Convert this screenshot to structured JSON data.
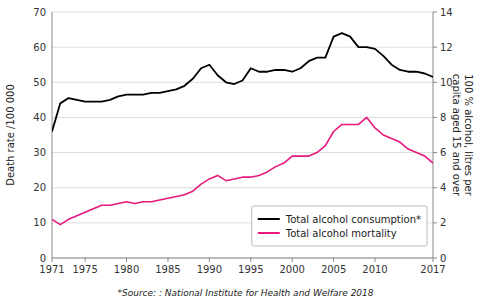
{
  "chart_data": {
    "type": "line",
    "x": [
      1971,
      1972,
      1973,
      1974,
      1975,
      1976,
      1977,
      1978,
      1979,
      1980,
      1981,
      1982,
      1983,
      1984,
      1985,
      1986,
      1987,
      1988,
      1989,
      1990,
      1991,
      1992,
      1993,
      1994,
      1995,
      1996,
      1997,
      1998,
      1999,
      2000,
      2001,
      2002,
      2003,
      2004,
      2005,
      2006,
      2007,
      2008,
      2009,
      2010,
      2011,
      2012,
      2013,
      2014,
      2015,
      2016,
      2017
    ],
    "series": [
      {
        "name": "Total alcohol consumption*",
        "color": "#000000",
        "values": [
          36,
          44,
          45.5,
          45,
          44.5,
          44.5,
          44.5,
          45,
          46,
          46.5,
          46.5,
          46.5,
          47,
          47,
          47.5,
          48,
          49,
          51,
          54,
          55,
          52,
          50,
          49.5,
          50.5,
          54,
          53,
          53,
          53.5,
          53.5,
          53,
          54,
          56,
          57,
          57,
          63,
          64,
          63,
          60,
          60,
          59.5,
          57.5,
          55,
          53.5,
          53,
          53,
          52.5,
          51.5
        ]
      },
      {
        "name": "Total alcohol mortality",
        "color": "#e8197e",
        "values": [
          11,
          9.5,
          11,
          12,
          13,
          14,
          15,
          15,
          15.5,
          16,
          15.5,
          16,
          16,
          16.5,
          17,
          17.5,
          18,
          19,
          21,
          22.5,
          23.5,
          22,
          22.5,
          23,
          23,
          23.5,
          24.5,
          26,
          27,
          29,
          29,
          29,
          30,
          32,
          36,
          38,
          38,
          38,
          40,
          37,
          35,
          34,
          33,
          31,
          30,
          29,
          27
        ]
      }
    ],
    "ylabel": "Death rate /100 000",
    "y2label": "100 % alcohol, litres per\ncapita aged 15 and over",
    "xlim": [
      1971,
      2017
    ],
    "xticks": [
      1971,
      1975,
      1980,
      1985,
      1990,
      1995,
      2000,
      2005,
      2010,
      2017
    ],
    "ylim": [
      0,
      70
    ],
    "yticks": [
      0,
      10,
      20,
      30,
      40,
      50,
      60,
      70
    ],
    "y2lim": [
      0,
      14
    ],
    "y2ticks": [
      0,
      2,
      4,
      6,
      8,
      10,
      12,
      14
    ],
    "grid": true,
    "legend": "lower right",
    "source": "*Source: : National Institute for Health and Welfare 2018"
  }
}
